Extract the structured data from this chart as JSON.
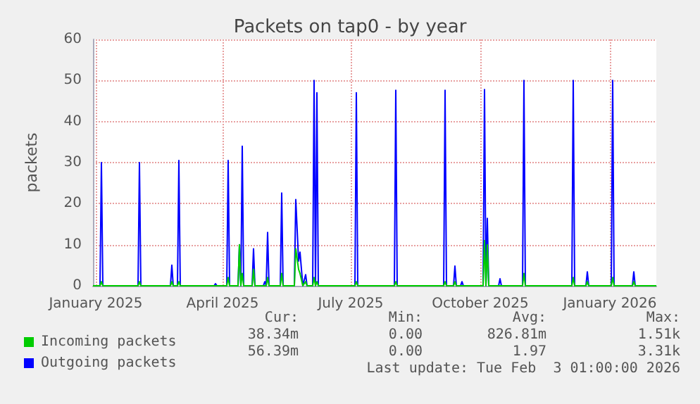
{
  "chart_data": {
    "type": "line",
    "title": "Packets on tap0 - by year",
    "ylabel": "packets",
    "x": [
      "2024-12-30",
      "2025-01-04",
      "2025-01-05",
      "2025-01-06",
      "2025-01-31",
      "2025-02-01",
      "2025-02-02",
      "2025-02-23",
      "2025-02-24",
      "2025-02-25",
      "2025-02-28",
      "2025-03-01",
      "2025-03-02",
      "2025-03-26",
      "2025-03-27",
      "2025-03-28",
      "2025-04-04",
      "2025-04-05",
      "2025-04-06",
      "2025-04-12",
      "2025-04-13",
      "2025-04-14",
      "2025-04-15",
      "2025-04-16",
      "2025-04-22",
      "2025-04-23",
      "2025-04-24",
      "2025-04-30",
      "2025-05-01",
      "2025-05-02",
      "2025-05-03",
      "2025-05-04",
      "2025-05-12",
      "2025-05-13",
      "2025-05-14",
      "2025-05-22",
      "2025-05-23",
      "2025-05-25",
      "2025-05-26",
      "2025-05-28",
      "2025-05-30",
      "2025-05-31",
      "2025-06-04",
      "2025-06-05",
      "2025-06-06",
      "2025-06-07",
      "2025-06-08",
      "2025-07-04",
      "2025-07-05",
      "2025-07-06",
      "2025-08-01",
      "2025-08-02",
      "2025-08-03",
      "2025-09-05",
      "2025-09-06",
      "2025-09-07",
      "2025-09-12",
      "2025-09-13",
      "2025-09-14",
      "2025-09-17",
      "2025-09-18",
      "2025-09-19",
      "2025-10-03",
      "2025-10-04",
      "2025-10-05",
      "2025-10-06",
      "2025-10-07",
      "2025-10-14",
      "2025-10-15",
      "2025-10-16",
      "2025-10-31",
      "2025-11-01",
      "2025-11-02",
      "2025-12-05",
      "2025-12-06",
      "2025-12-07",
      "2025-12-15",
      "2025-12-16",
      "2025-12-17",
      "2026-01-02",
      "2026-01-03",
      "2026-01-04",
      "2026-01-17",
      "2026-01-18",
      "2026-01-19",
      "2026-02-03"
    ],
    "series": [
      {
        "name": "Incoming packets",
        "color": "#00cc00",
        "values": [
          0,
          0,
          1,
          0,
          0,
          1,
          0,
          0,
          1,
          0,
          0,
          1,
          0,
          0,
          0,
          0,
          0,
          2,
          0,
          0,
          10,
          0,
          3,
          0,
          0,
          4,
          0,
          0,
          0,
          0,
          2,
          0,
          0,
          3,
          0,
          0,
          9,
          4,
          3,
          0,
          1,
          0,
          0,
          2,
          0,
          1,
          0,
          0,
          1,
          0,
          0,
          1,
          0,
          0,
          1,
          0,
          0,
          1,
          0,
          0,
          0,
          0,
          0,
          11,
          0,
          10,
          0,
          0,
          0,
          0,
          0,
          3,
          0,
          0,
          2,
          0,
          0,
          1,
          0,
          0,
          2,
          0,
          0,
          1,
          0,
          0
        ]
      },
      {
        "name": "Outgoing packets",
        "color": "#0000ff",
        "values": [
          0,
          0,
          30,
          0,
          0,
          30,
          0,
          0,
          5,
          0,
          0,
          30.5,
          0,
          0,
          0.5,
          0,
          0,
          30.5,
          0,
          0,
          10,
          0,
          34,
          0,
          0,
          9,
          0,
          0,
          1,
          0,
          13,
          0,
          0,
          22.6,
          0,
          0,
          21,
          6,
          8.2,
          0,
          2.7,
          0,
          0,
          50,
          0,
          47,
          0,
          0,
          47,
          0,
          0,
          47.6,
          0,
          0,
          47.6,
          0,
          0,
          4.8,
          0,
          0,
          1,
          0,
          0,
          47.8,
          0,
          16.4,
          0,
          0,
          1.7,
          0,
          0,
          50,
          0,
          0,
          50,
          0,
          0,
          3.4,
          0,
          0,
          50,
          0,
          0,
          3.4,
          0,
          0
        ]
      }
    ],
    "xlim": [
      "2024-12-30",
      "2026-02-03"
    ],
    "xticks": [
      {
        "value": "2025-01-01",
        "label": "January 2025"
      },
      {
        "value": "2025-04-01",
        "label": "April 2025"
      },
      {
        "value": "2025-07-01",
        "label": "July 2025"
      },
      {
        "value": "2025-10-01",
        "label": "October 2025"
      },
      {
        "value": "2026-01-01",
        "label": "January 2026"
      }
    ],
    "ylim": [
      0,
      60
    ],
    "yticks": [
      0,
      10,
      20,
      30,
      40,
      50,
      60
    ],
    "grid": true,
    "legend": "bottom left",
    "marker": "none",
    "annotations": [
      "Cur:",
      "Min:",
      "Avg:",
      "Max:",
      "38.34m",
      "0.00",
      "826.81m",
      "1.51k",
      "56.39m",
      "0.00",
      "1.97",
      "3.31k",
      "Last update: Tue Feb  3 01:00:00 2026"
    ]
  }
}
